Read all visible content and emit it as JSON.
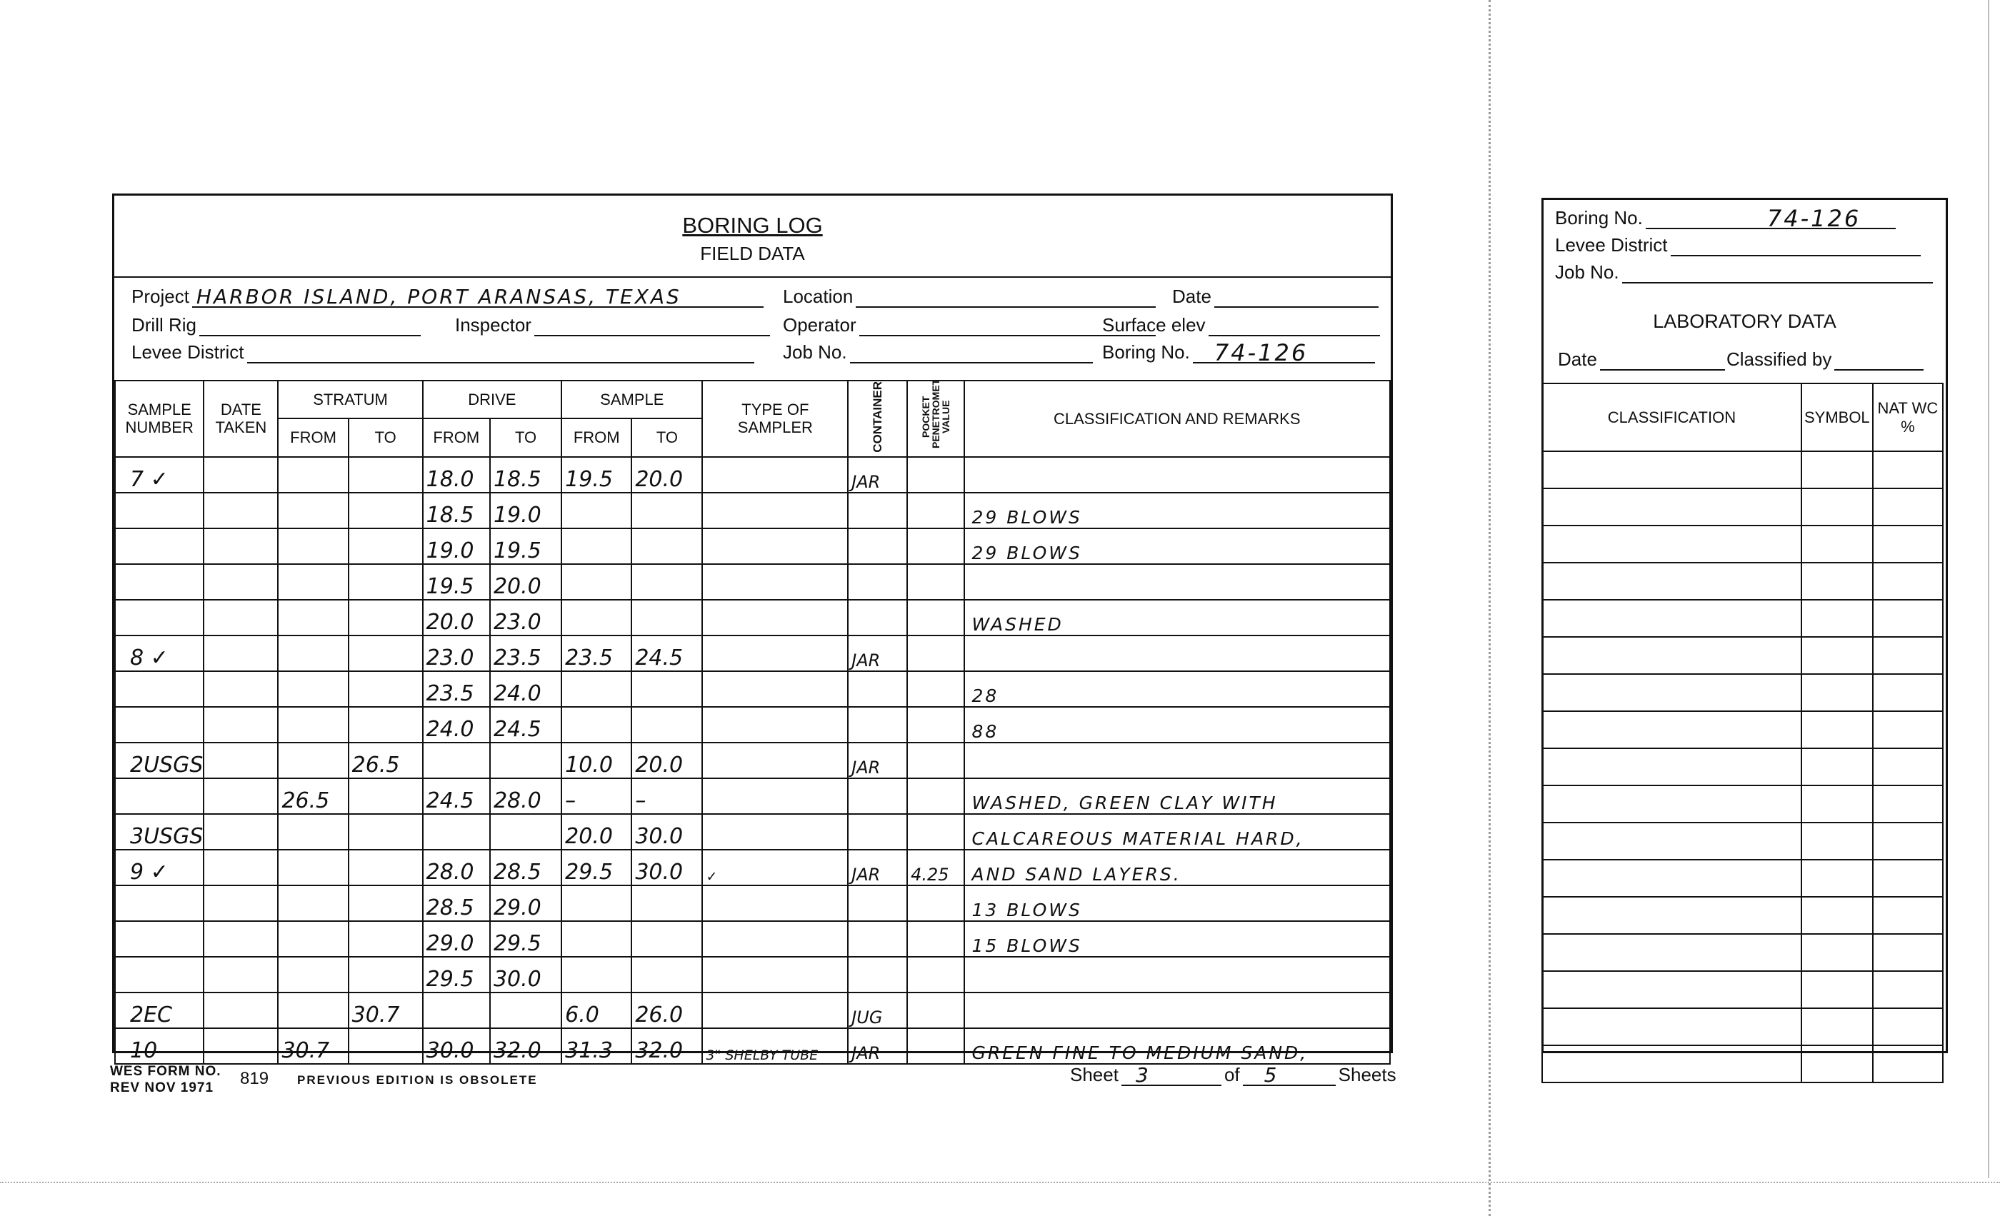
{
  "form": {
    "title": "BORING LOG",
    "subtitle": "FIELD DATA",
    "fields": {
      "project_label": "Project",
      "project_value": "HARBOR ISLAND, PORT ARANSAS, TEXAS",
      "location_label": "Location",
      "location_value": "",
      "date_label": "Date",
      "date_value": "",
      "drill_rig_label": "Drill Rig",
      "drill_rig_value": "",
      "inspector_label": "Inspector",
      "inspector_value": "",
      "operator_label": "Operator",
      "operator_value": "",
      "surface_elev_label": "Surface elev",
      "surface_elev_value": "",
      "levee_district_label": "Levee District",
      "levee_district_value": "",
      "job_no_label": "Job No.",
      "job_no_value": "",
      "boring_no_label": "Boring No.",
      "boring_no_value": "74-126"
    },
    "headers": {
      "sample_number": "SAMPLE NUMBER",
      "date_taken": "DATE TAKEN",
      "stratum": "STRATUM",
      "drive": "DRIVE",
      "sample": "SAMPLE",
      "from": "FROM",
      "to": "TO",
      "type_of_sampler": "TYPE OF SAMPLER",
      "container": "CONTAINER",
      "pocket_penetrometer": "POCKET PENETROMETER VALUE",
      "classification_remarks": "CLASSIFICATION AND REMARKS"
    },
    "rows": [
      [
        "7 ✓",
        "",
        "",
        "",
        "18.0",
        "18.5",
        "19.5",
        "20.0",
        "",
        "JAR",
        "",
        ""
      ],
      [
        "",
        "",
        "",
        "",
        "18.5",
        "19.0",
        "",
        "",
        "",
        "",
        "",
        "29 BLOWS"
      ],
      [
        "",
        "",
        "",
        "",
        "19.0",
        "19.5",
        "",
        "",
        "",
        "",
        "",
        "29 BLOWS"
      ],
      [
        "",
        "",
        "",
        "",
        "19.5",
        "20.0",
        "",
        "",
        "",
        "",
        "",
        ""
      ],
      [
        "",
        "",
        "",
        "",
        "20.0",
        "23.0",
        "",
        "",
        "",
        "",
        "",
        "WASHED"
      ],
      [
        "8 ✓",
        "",
        "",
        "",
        "23.0",
        "23.5",
        "23.5",
        "24.5",
        "",
        "JAR",
        "",
        ""
      ],
      [
        "",
        "",
        "",
        "",
        "23.5",
        "24.0",
        "",
        "",
        "",
        "",
        "",
        "28"
      ],
      [
        "",
        "",
        "",
        "",
        "24.0",
        "24.5",
        "",
        "",
        "",
        "",
        "",
        "88"
      ],
      [
        "2USGS",
        "",
        "",
        "26.5",
        "",
        "",
        "10.0",
        "20.0",
        "",
        "JAR",
        "",
        ""
      ],
      [
        "",
        "",
        "26.5",
        "",
        "24.5",
        "28.0",
        "–",
        "–",
        "",
        "",
        "",
        "WASHED, GREEN CLAY WITH"
      ],
      [
        "3USGS",
        "",
        "",
        "",
        "",
        "",
        "20.0",
        "30.0",
        "",
        "",
        "",
        "CALCAREOUS MATERIAL HARD,"
      ],
      [
        "9 ✓",
        "",
        "",
        "",
        "28.0",
        "28.5",
        "29.5",
        "30.0",
        "✓",
        "JAR",
        "4.25",
        "AND SAND LAYERS."
      ],
      [
        "",
        "",
        "",
        "",
        "28.5",
        "29.0",
        "",
        "",
        "",
        "",
        "",
        "13 BLOWS"
      ],
      [
        "",
        "",
        "",
        "",
        "29.0",
        "29.5",
        "",
        "",
        "",
        "",
        "",
        "15 BLOWS"
      ],
      [
        "",
        "",
        "",
        "",
        "29.5",
        "30.0",
        "",
        "",
        "",
        "",
        "",
        ""
      ],
      [
        "2EC",
        "",
        "",
        "30.7",
        "",
        "",
        "6.0",
        "26.0",
        "",
        "JUG",
        "",
        ""
      ],
      [
        "10",
        "",
        "30.7",
        "",
        "30.0",
        "32.0",
        "31.3",
        "32.0",
        "3\" SHELBY TUBE",
        "JAR",
        "",
        "GREEN FINE TO MEDIUM SAND,"
      ]
    ],
    "footer": {
      "form_no": "WES FORM NO.",
      "rev": "REV NOV 1971",
      "number": "819",
      "obsolete": "PREVIOUS EDITION IS OBSOLETE",
      "sheet_label": "Sheet",
      "sheet_value": "3",
      "of_label": "of",
      "of_value": "5",
      "sheets_label": "Sheets"
    }
  },
  "lab": {
    "boring_no_label": "Boring No.",
    "boring_no_value": "74-126",
    "levee_district_label": "Levee District",
    "levee_district_value": "",
    "job_no_label": "Job No.",
    "job_no_value": "",
    "title": "LABORATORY DATA",
    "date_label": "Date",
    "date_value": "",
    "classified_by_label": "Classified by",
    "classified_by_value": "",
    "headers": {
      "classification": "CLASSIFICATION",
      "symbol": "SYMBOL",
      "nat_wc": "NAT WC %"
    },
    "row_count": 17
  }
}
